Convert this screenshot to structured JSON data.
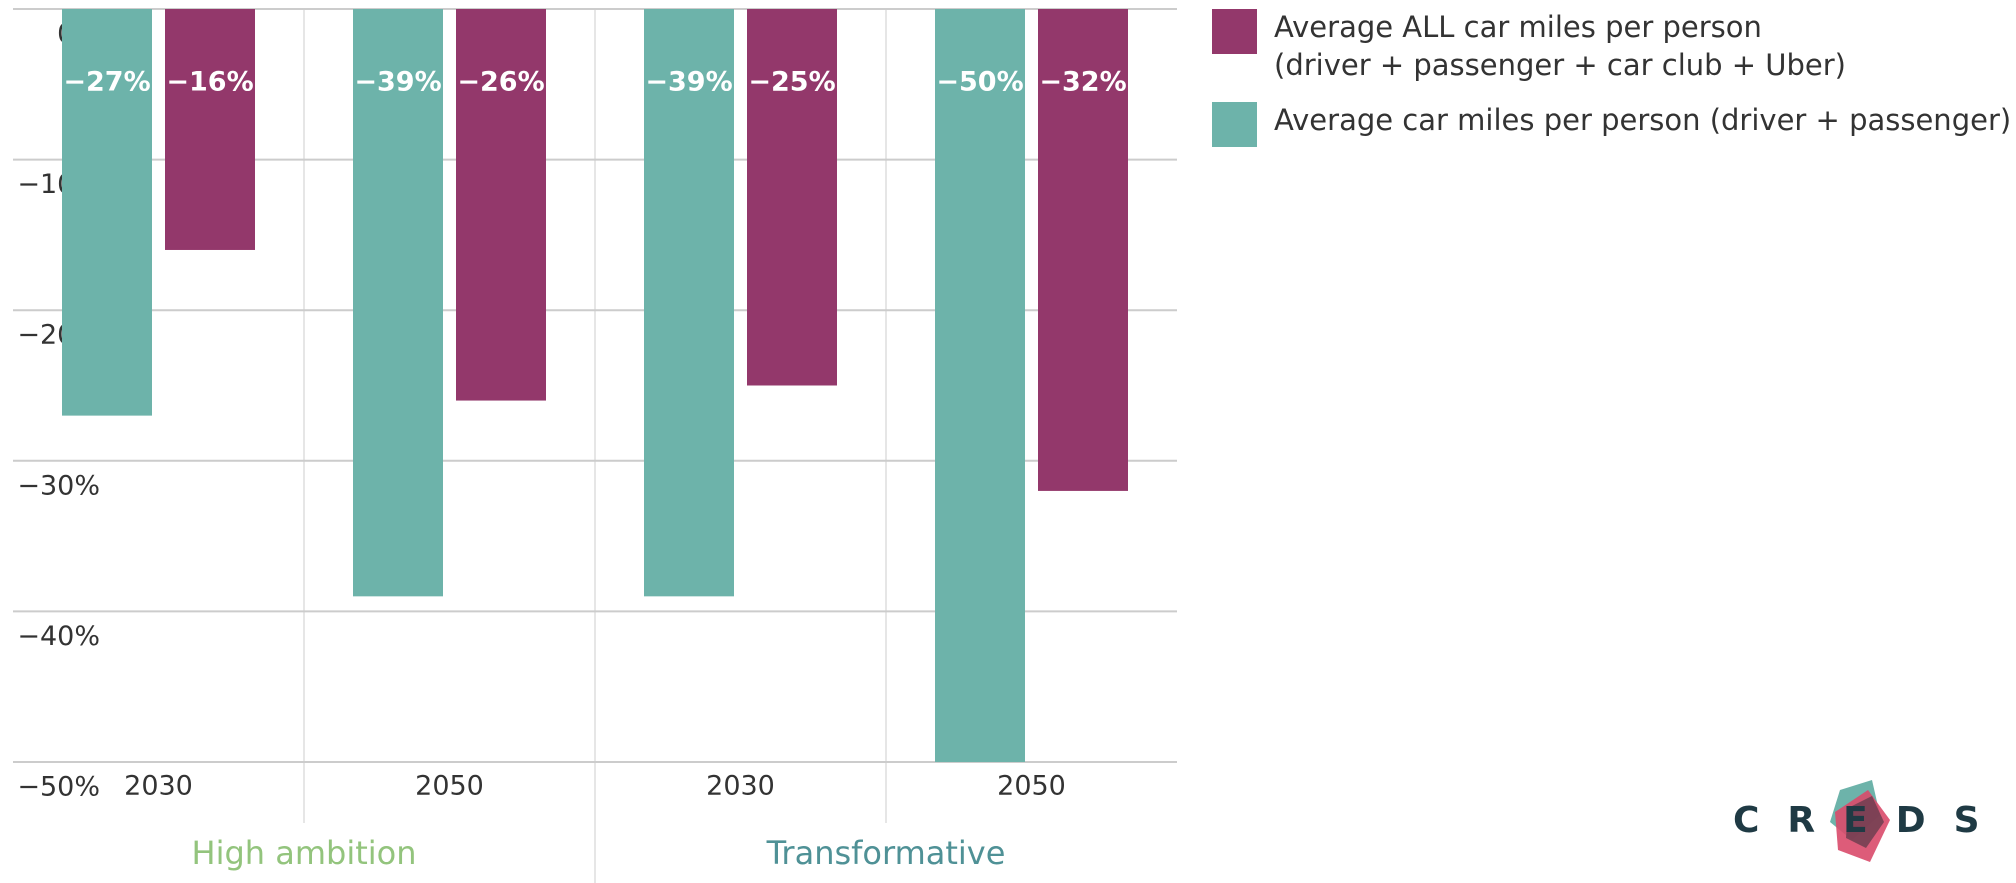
{
  "chart_data": {
    "type": "bar",
    "categories": [
      "2030",
      "2050",
      "2030",
      "2050"
    ],
    "groups": [
      {
        "label": "High ambition",
        "color": "#93c47d"
      },
      {
        "label": "Transformative",
        "color": "#4f9196"
      }
    ],
    "series": [
      {
        "name": "Average ALL car miles per person\n(driver + passenger + car club + Uber)",
        "color": "#93386b",
        "values": [
          -16,
          -26,
          -25,
          -32
        ],
        "value_labels": [
          "−16%",
          "−26%",
          "−25%",
          "−32%"
        ]
      },
      {
        "name": "Average car miles per person (driver + passenger)",
        "color": "#6db3aa",
        "values": [
          -27,
          -39,
          -39,
          -50
        ],
        "value_labels": [
          "−27%",
          "−39%",
          "−39%",
          "−50%"
        ]
      }
    ],
    "ylim": [
      -50,
      0
    ],
    "yticks": [
      {
        "value": 0,
        "label": "0%"
      },
      {
        "value": -10,
        "label": "−10%"
      },
      {
        "value": -20,
        "label": "−20%"
      },
      {
        "value": -30,
        "label": "−30%"
      },
      {
        "value": -40,
        "label": "−40%"
      },
      {
        "value": -50,
        "label": "−50%"
      }
    ],
    "grid": true,
    "logo": "CREDS"
  }
}
